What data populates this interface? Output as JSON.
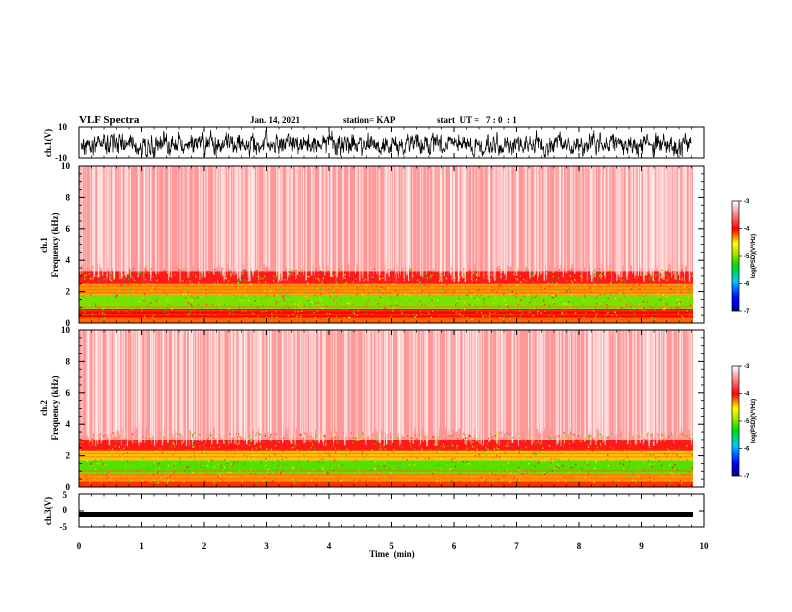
{
  "header": {
    "title": "VLF Spectra",
    "date": "Jan. 14, 2021",
    "station": "station= KAP",
    "start": "start  UT =   7 : 0  : 1"
  },
  "chart_data": [
    {
      "id": "ch1-waveform",
      "type": "line",
      "ylabel": "ch.1(V)",
      "ylim": [
        -10,
        10
      ],
      "ytick_labels": [
        "10",
        "-10"
      ]
    },
    {
      "id": "ch1-spectrogram",
      "type": "heatmap",
      "ylabel": "ch.1\nFrequency  (kHz)",
      "ylim": [
        0,
        10
      ],
      "ytick_labels": [
        "0",
        "2",
        "4",
        "6",
        "8",
        "10"
      ],
      "colorbar": {
        "label": "log(PSD)(V²/Hz)",
        "range": [
          -7,
          -3
        ],
        "ticks": [
          "-3",
          "-4",
          "-5",
          "-6",
          "-7"
        ]
      },
      "bands": [
        {
          "from": 0,
          "to": 0.35,
          "level": -4.2
        },
        {
          "from": 0.35,
          "to": 0.9,
          "level": -4.0
        },
        {
          "from": 0.9,
          "to": 1.8,
          "level": -5.0
        },
        {
          "from": 1.8,
          "to": 2.5,
          "level": -4.3
        },
        {
          "from": 2.5,
          "to": 3.3,
          "level": -3.9
        },
        {
          "from": 3.3,
          "to": 10,
          "level": -3.4
        }
      ]
    },
    {
      "id": "ch2-spectrogram",
      "type": "heatmap",
      "ylabel": "ch.2\nFrequency  (kHz)",
      "ylim": [
        0,
        10
      ],
      "ytick_labels": [
        "0",
        "2",
        "4",
        "6",
        "8",
        "10"
      ],
      "colorbar": {
        "label": "log(PSD)(V²/Hz)",
        "range": [
          -7,
          -3
        ],
        "ticks": [
          "-3",
          "-4",
          "-5",
          "-6",
          "-7"
        ]
      },
      "bands": [
        {
          "from": 0,
          "to": 0.35,
          "level": -4.1
        },
        {
          "from": 0.35,
          "to": 0.9,
          "level": -4.3
        },
        {
          "from": 0.9,
          "to": 1.7,
          "level": -5.1
        },
        {
          "from": 1.7,
          "to": 2.3,
          "level": -4.4
        },
        {
          "from": 2.3,
          "to": 3.0,
          "level": -3.9
        },
        {
          "from": 3.0,
          "to": 10,
          "level": -3.4
        }
      ]
    },
    {
      "id": "ch3-waveform",
      "type": "line",
      "ylabel": "ch.3(V)",
      "ylim": [
        -5,
        5
      ],
      "ytick_labels": [
        "5",
        "0",
        "-5"
      ],
      "level": -1.2
    }
  ],
  "xaxis": {
    "label": "Time  (min)",
    "range": [
      0,
      10
    ],
    "tick_labels": [
      "0",
      "1",
      "2",
      "3",
      "4",
      "5",
      "6",
      "7",
      "8",
      "9",
      "10"
    ]
  }
}
